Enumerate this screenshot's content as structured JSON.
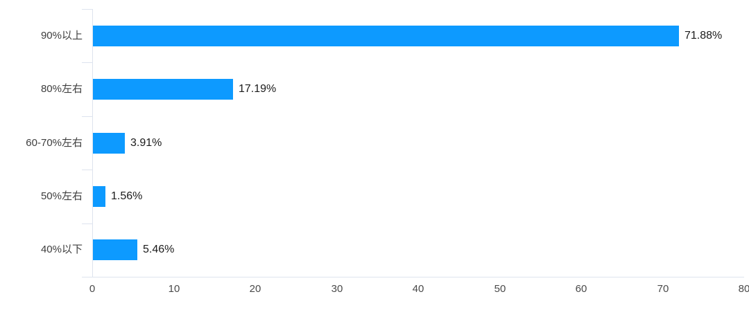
{
  "chart": {
    "background": "#ffffff"
  },
  "chart_data": {
    "type": "bar",
    "orientation": "horizontal",
    "title": "",
    "xlabel": "",
    "ylabel": "",
    "categories": [
      "90%以上",
      "80%左右",
      "60-70%左右",
      "50%左右",
      "40%以下"
    ],
    "values": [
      71.88,
      17.19,
      3.91,
      1.56,
      5.46
    ],
    "value_labels": [
      "71.88%",
      "17.19%",
      "3.91%",
      "1.56%",
      "5.46%"
    ],
    "xlim": [
      0,
      80
    ],
    "x_ticks": [
      "0",
      "10",
      "20",
      "30",
      "40",
      "50",
      "60",
      "70",
      "80"
    ],
    "grid": false,
    "legend": false,
    "colors": {
      "bar": "#0d9aff",
      "axis_line": "#dde3ee",
      "category_label": "#3d3d3d",
      "value_label": "#1a1a1a",
      "tick_label": "#4a4a4a"
    }
  }
}
